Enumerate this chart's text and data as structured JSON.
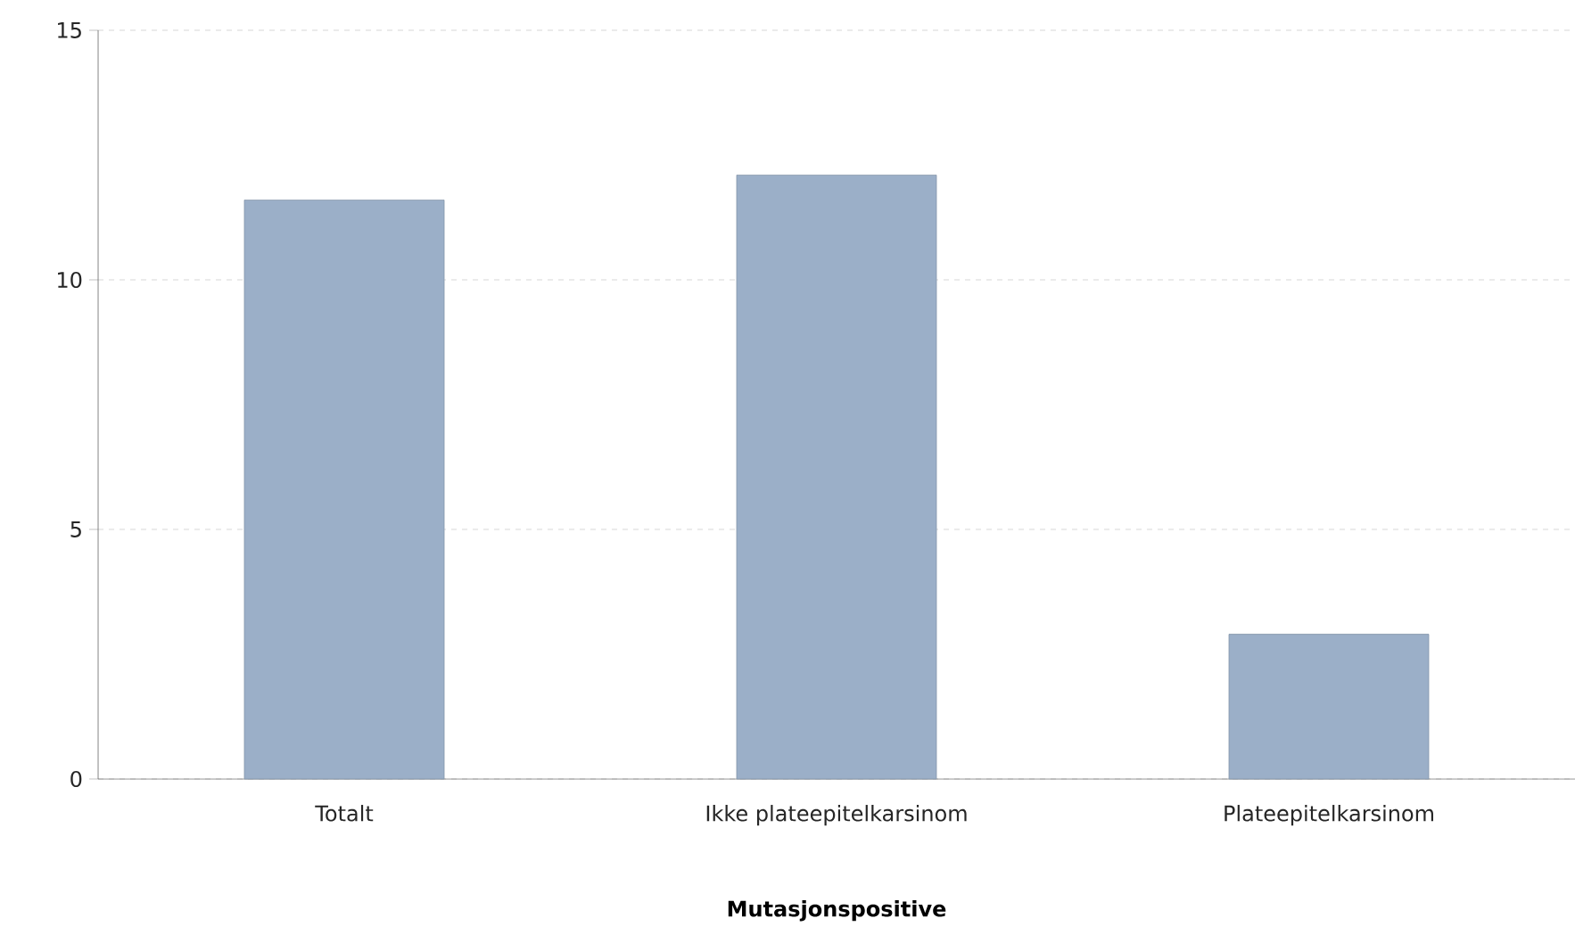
{
  "chart_data": {
    "type": "bar",
    "xlabel": "Mutasjonspositive",
    "categories": [
      "Totalt",
      "Ikke plateepitelkarsinom",
      "Plateepitelkarsinom"
    ],
    "values": [
      11.6,
      12.1,
      2.9
    ],
    "color": "#9bafc8",
    "ylim": [
      0,
      15
    ],
    "yticks": [
      0,
      5,
      10,
      15
    ],
    "grid": "y"
  }
}
